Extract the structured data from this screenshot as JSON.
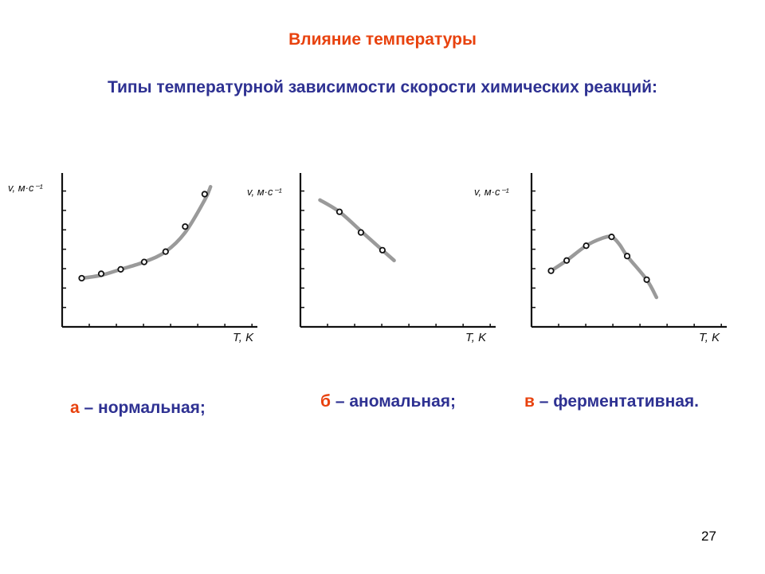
{
  "slide": {
    "title": "Влияние температуры",
    "subtitle": "Типы температурной зависимости скорости химических реакций:",
    "page_number": "27"
  },
  "captions": [
    {
      "letter": "а",
      "text": " – нормальная;"
    },
    {
      "letter": "б",
      "text": " – аномальная;"
    },
    {
      "letter": "в",
      "text": " – ферментативная."
    }
  ],
  "colors": {
    "title": "#e8420e",
    "text": "#2e3192",
    "curve": "#9a9a9a",
    "axis": "#111111"
  },
  "chart_data": [
    {
      "type": "line",
      "title": "",
      "xlabel": "T, K",
      "ylabel": "v, м·с⁻¹",
      "xlim": [
        0,
        10
      ],
      "ylim": [
        0,
        10
      ],
      "grid": false,
      "series": [
        {
          "x": [
            1,
            2,
            3,
            4.2,
            5.3,
            6.3,
            7.3
          ],
          "y": [
            3.3,
            3.6,
            3.9,
            4.4,
            5.1,
            6.8,
            9.0
          ]
        }
      ],
      "curve": [
        [
          1,
          3.3
        ],
        [
          2,
          3.5
        ],
        [
          3,
          3.9
        ],
        [
          4.2,
          4.4
        ],
        [
          5.3,
          5.1
        ],
        [
          6.3,
          6.4
        ],
        [
          7.3,
          8.6
        ],
        [
          7.6,
          9.5
        ]
      ]
    },
    {
      "type": "line",
      "title": "",
      "xlabel": "T, K",
      "ylabel": "v, м·с⁻¹",
      "xlim": [
        0,
        10
      ],
      "ylim": [
        0,
        10
      ],
      "grid": false,
      "series": [
        {
          "x": [
            2,
            3.1,
            4.2
          ],
          "y": [
            7.8,
            6.4,
            5.2
          ]
        }
      ],
      "curve": [
        [
          1,
          8.6
        ],
        [
          2,
          7.8
        ],
        [
          3.1,
          6.5
        ],
        [
          4.2,
          5.2
        ],
        [
          4.8,
          4.5
        ]
      ]
    },
    {
      "type": "line",
      "title": "",
      "xlabel": "T, K",
      "ylabel": "v, м·с⁻¹",
      "xlim": [
        0,
        10
      ],
      "ylim": [
        0,
        10
      ],
      "grid": false,
      "series": [
        {
          "x": [
            1,
            1.8,
            2.8,
            4.1,
            4.9,
            5.9
          ],
          "y": [
            3.8,
            4.5,
            5.5,
            6.1,
            4.8,
            3.2
          ]
        }
      ],
      "curve": [
        [
          1,
          3.8
        ],
        [
          1.8,
          4.5
        ],
        [
          2.8,
          5.5
        ],
        [
          3.6,
          6.0
        ],
        [
          4.1,
          6.1
        ],
        [
          4.5,
          5.6
        ],
        [
          4.9,
          4.8
        ],
        [
          5.9,
          3.2
        ],
        [
          6.4,
          2.0
        ]
      ]
    }
  ]
}
